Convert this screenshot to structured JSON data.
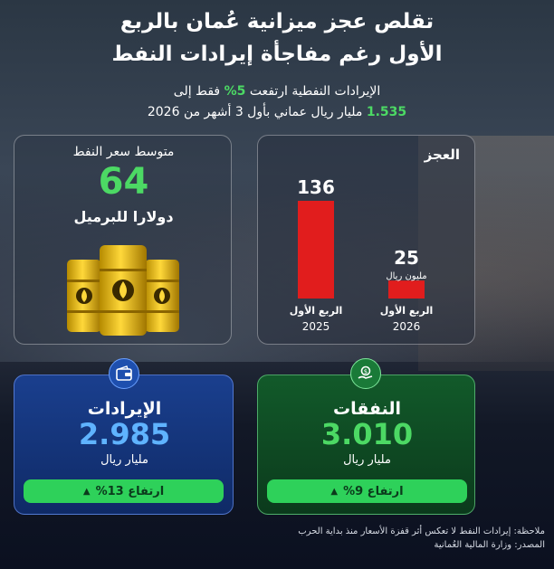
{
  "headline": {
    "line1": "تقلص عجز ميزانية عُمان بالربع",
    "line2": "الأول رغم مفاجأة إيرادات النفط"
  },
  "subheadline": {
    "part1": "الإيرادات النفطية ارتفعت",
    "pct": "5%",
    "part2": "فقط إلى",
    "value": "1.535",
    "part3": "مليار ريال عماني بأول 3 أشهر من 2026"
  },
  "deficit_panel": {
    "title": "العجز",
    "unit": "مليون ريال"
  },
  "oil_panel": {
    "title": "متوسط سعر النفط",
    "value": "64",
    "unit": "دولارا للبرميل"
  },
  "revenue": {
    "title": "الإيرادات",
    "value": "2.985",
    "unit": "مليار ريال",
    "change": "ارتفاع 13%"
  },
  "expenses": {
    "title": "النفقات",
    "value": "3.010",
    "unit": "مليار ريال",
    "change": "ارتفاع 9%"
  },
  "notes": {
    "note": "ملاحظة: إيرادات النفط لا تعكس أثر قفزة الأسعار منذ بداية الحرب",
    "source": "المصدر: وزارة المالية العُمانية"
  },
  "colors": {
    "accent_green": "#4cd964",
    "bar_red": "#e11d1d",
    "revenue_blue": "#1a3f8e",
    "expense_green": "#125a2a"
  },
  "icons": {
    "revenue": "wallet-icon",
    "expenses": "money-hand-icon",
    "arrow": "triangle-up-icon"
  },
  "chart_data": {
    "type": "bar",
    "title": "العجز",
    "categories": [
      "الربع الأول 2025",
      "الربع الأول 2026"
    ],
    "category_labels": [
      {
        "quarter": "الربع الأول",
        "year": "2025"
      },
      {
        "quarter": "الربع الأول",
        "year": "2026"
      }
    ],
    "values": [
      136,
      25
    ],
    "value_labels": [
      "136",
      "25"
    ],
    "unit": "مليون ريال",
    "ylim": [
      0,
      136
    ],
    "grid": false,
    "legend": "none"
  }
}
